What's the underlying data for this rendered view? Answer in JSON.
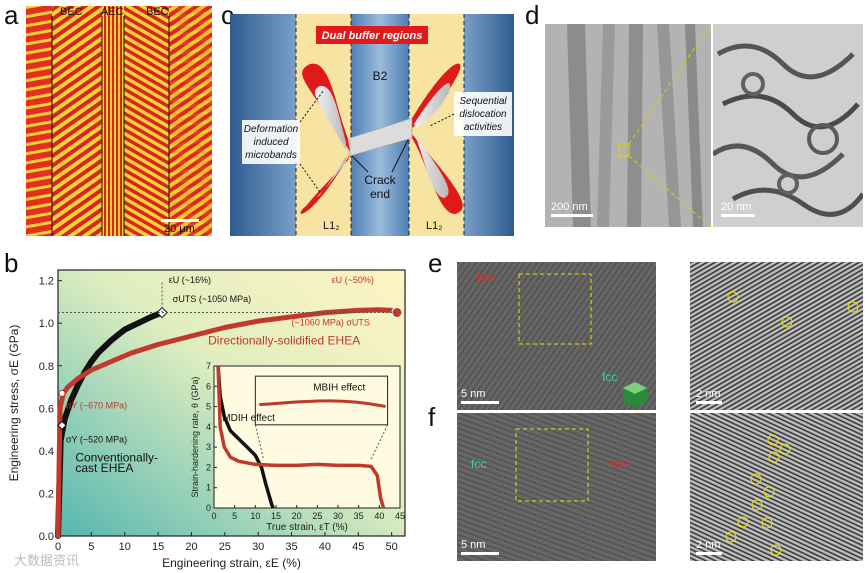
{
  "panel_labels": {
    "a": "a",
    "b": "b",
    "c": "c",
    "d": "d",
    "e": "e",
    "f": "f"
  },
  "panel_a": {
    "labels": [
      "BEC",
      "AEC",
      "BEC"
    ],
    "scale": "20 μm"
  },
  "panel_c": {
    "title": "Dual buffer regions",
    "b2": "B2",
    "l12_left": "L1₂",
    "l12_right": "L1₂",
    "deformation": [
      "Deformation",
      "induced",
      "microbands"
    ],
    "sequential": [
      "Sequential",
      "dislocation",
      "activities"
    ],
    "crack": [
      "Crack",
      "end"
    ]
  },
  "panel_d": {
    "scale_left": "200 nm",
    "scale_right": "20 nm"
  },
  "panel_e": {
    "bcc": "bcc",
    "fcc": "fcc",
    "scale_left": "5 nm",
    "scale_right": "2 nm"
  },
  "panel_f": {
    "bcc": "bcc",
    "fcc": "fcc",
    "scale_left": "5 nm",
    "scale_right": "2 nm"
  },
  "watermark": "大数据资讯",
  "chart_data": [
    {
      "type": "line",
      "title": "",
      "xlabel": "Engineering strain, εE (%)",
      "ylabel": "Engineering stress, σE (GPa)",
      "xlim": [
        0,
        52
      ],
      "ylim": [
        0,
        1.25
      ],
      "xticks": [
        0,
        5,
        10,
        15,
        20,
        25,
        30,
        35,
        40,
        45,
        50
      ],
      "yticks": [
        0.0,
        0.2,
        0.4,
        0.6,
        0.8,
        1.0,
        1.2
      ],
      "series": [
        {
          "name": "Conventionally-cast EHEA",
          "color": "#111111",
          "x": [
            0,
            0.4,
            1,
            2,
            3,
            4,
            5,
            6,
            8,
            10,
            12,
            14,
            15.6
          ],
          "y": [
            0,
            0.45,
            0.55,
            0.64,
            0.71,
            0.77,
            0.82,
            0.86,
            0.92,
            0.97,
            1.0,
            1.03,
            1.05
          ]
        },
        {
          "name": "Directionally-solidified EHEA",
          "color": "#c0392b",
          "x": [
            0,
            0.3,
            0.8,
            1.5,
            3,
            5,
            8,
            11,
            15,
            20,
            25,
            30,
            35,
            40,
            45,
            48,
            50,
            50.8
          ],
          "y": [
            0,
            0.6,
            0.67,
            0.7,
            0.74,
            0.78,
            0.82,
            0.86,
            0.9,
            0.94,
            0.98,
            1.01,
            1.03,
            1.05,
            1.06,
            1.063,
            1.06,
            1.05
          ]
        }
      ],
      "labels": {
        "uts_black": "σUTS (~1050 MPa)",
        "eu_black": "εU (~16%)",
        "eu_red": "εU (~50%)",
        "uts_red": "(~1060 MPa) σUTS",
        "ds_name": "Directionally-solidified EHEA",
        "cc_name_1": "Conventionally-",
        "cc_name_2": "cast EHEA",
        "sy_red": "σY (~670 MPa)",
        "sy_black": "σY (~520 MPa)"
      }
    },
    {
      "type": "line",
      "title": "",
      "xlabel": "True strain, εT (%)",
      "ylabel": "Strain-hardening rate, θ (GPa)",
      "xlim": [
        0,
        45
      ],
      "ylim": [
        0,
        7
      ],
      "xticks": [
        0,
        5,
        10,
        15,
        20,
        25,
        30,
        35,
        40,
        45
      ],
      "yticks": [
        0,
        1,
        2,
        3,
        4,
        5,
        6,
        7
      ],
      "series": [
        {
          "name": "Conventionally-cast EHEA",
          "color": "#111111",
          "x": [
            1,
            1.5,
            2.5,
            4,
            6,
            8,
            10,
            11.5,
            12.5,
            13.5,
            14,
            14.3
          ],
          "y": [
            7,
            5.5,
            4.5,
            3.8,
            3.4,
            3.0,
            2.6,
            2.0,
            1.2,
            0.5,
            0.15,
            0
          ]
        },
        {
          "name": "Directionally-solidified EHEA",
          "color": "#c0392b",
          "x": [
            1,
            1.5,
            2.5,
            4,
            6,
            10,
            15,
            20,
            25,
            30,
            35,
            38,
            39.5,
            40.3,
            41
          ],
          "y": [
            7,
            4,
            3.0,
            2.5,
            2.3,
            2.15,
            2.1,
            2.1,
            2.15,
            2.1,
            2.1,
            2.05,
            1.6,
            0.5,
            0
          ]
        }
      ],
      "labels": {
        "mbih": "MBIH effect",
        "mdih": "MDIH effect"
      }
    }
  ]
}
